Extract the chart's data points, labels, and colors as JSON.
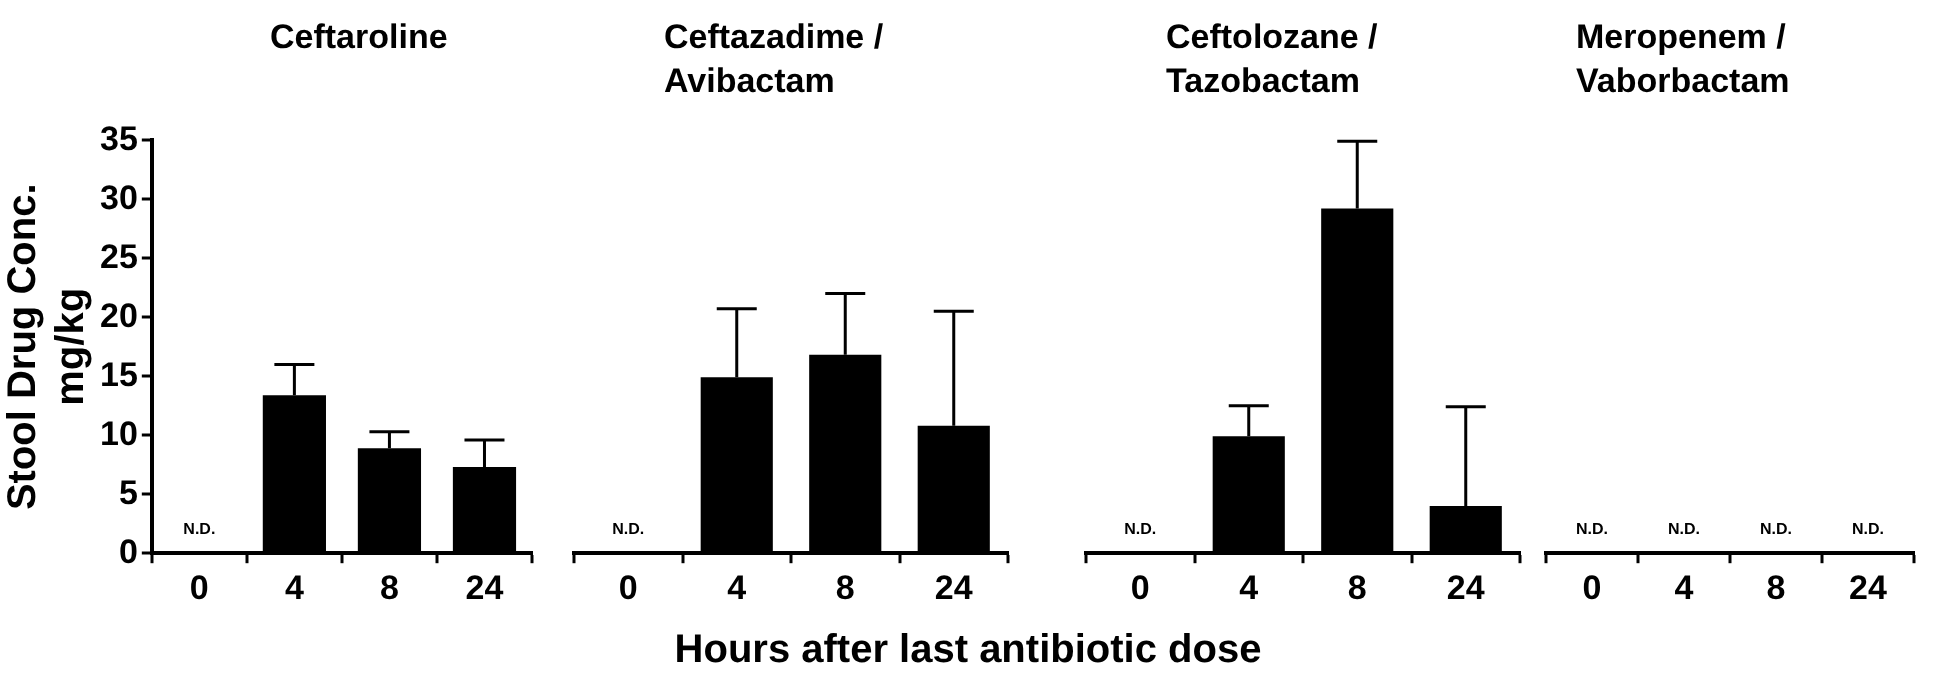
{
  "chart_data": [
    {
      "type": "bar",
      "title": "Ceftaroline",
      "ylabel": "Stool Drug Conc.\nmg/kg",
      "xlabel": "Hours after last antibiotic dose",
      "categories": [
        "0",
        "4",
        "8",
        "24"
      ],
      "color": "#000000",
      "values": [
        null,
        13.4,
        8.9,
        7.3
      ],
      "errors": [
        null,
        [
          13.4,
          16.0
        ],
        [
          8.9,
          10.3
        ],
        [
          7.3,
          9.6
        ]
      ],
      "value_labels": [
        "N.D.",
        null,
        null,
        null
      ],
      "ylim": [
        0,
        35
      ],
      "yticks": [
        0,
        5,
        10,
        15,
        20,
        25,
        30,
        35
      ],
      "grid": false,
      "legend": false
    },
    {
      "type": "bar",
      "title": "Ceftazadime /\nAvibactam",
      "categories": [
        "0",
        "4",
        "8",
        "24"
      ],
      "color": "#000000",
      "values": [
        null,
        14.9,
        16.8,
        10.8
      ],
      "errors": [
        null,
        [
          14.9,
          20.7
        ],
        [
          16.8,
          22.0
        ],
        [
          10.8,
          20.5
        ]
      ],
      "value_labels": [
        "N.D.",
        null,
        null,
        null
      ],
      "ylim": [
        0,
        35
      ],
      "tick_labels": "x",
      "grid": false,
      "legend": false
    },
    {
      "type": "bar",
      "title": "Ceftolozane /\nTazobactam",
      "categories": [
        "0",
        "4",
        "8",
        "24"
      ],
      "color": "#000000",
      "values": [
        null,
        9.9,
        29.2,
        4.0
      ],
      "errors": [
        null,
        [
          9.9,
          12.5
        ],
        [
          29.2,
          34.9
        ],
        [
          4.0,
          12.4
        ]
      ],
      "value_labels": [
        "N.D.",
        null,
        null,
        null
      ],
      "ylim": [
        0,
        35
      ],
      "tick_labels": "x",
      "grid": false,
      "legend": false
    },
    {
      "type": "bar",
      "title": "Meropenem /\nVaborbactam",
      "categories": [
        "0",
        "4",
        "8",
        "24"
      ],
      "color": "#000000",
      "values": [
        null,
        null,
        null,
        null
      ],
      "value_labels": [
        "N.D.",
        "N.D.",
        "N.D.",
        "N.D."
      ],
      "ylim": [
        0,
        35
      ],
      "tick_labels": "x",
      "grid": false,
      "legend": false
    }
  ]
}
